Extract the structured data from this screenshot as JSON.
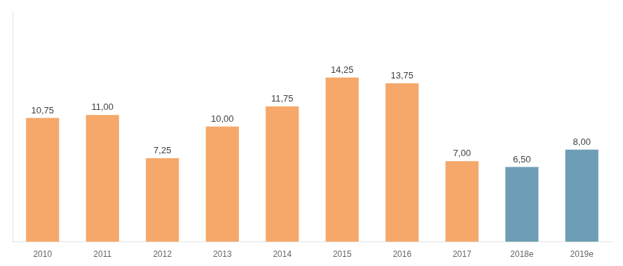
{
  "chart_data": {
    "type": "bar",
    "categories": [
      "2010",
      "2011",
      "2012",
      "2013",
      "2014",
      "2015",
      "2016",
      "2017",
      "2018e",
      "2019e"
    ],
    "values": [
      10.75,
      11.0,
      7.25,
      10.0,
      11.75,
      14.25,
      13.75,
      7.0,
      6.5,
      8.0
    ],
    "value_labels": [
      "10,75",
      "11,00",
      "7,25",
      "10,00",
      "11,75",
      "14,25",
      "13,75",
      "7,00",
      "6,50",
      "8,00"
    ],
    "colors": [
      "#F5A86A",
      "#F5A86A",
      "#F5A86A",
      "#F5A86A",
      "#F5A86A",
      "#F5A86A",
      "#F5A86A",
      "#F5A86A",
      "#6E9EB5",
      "#6E9EB5"
    ],
    "ylim": [
      0,
      20
    ],
    "grid": false,
    "data_labels": true,
    "tick_labels": "x"
  }
}
